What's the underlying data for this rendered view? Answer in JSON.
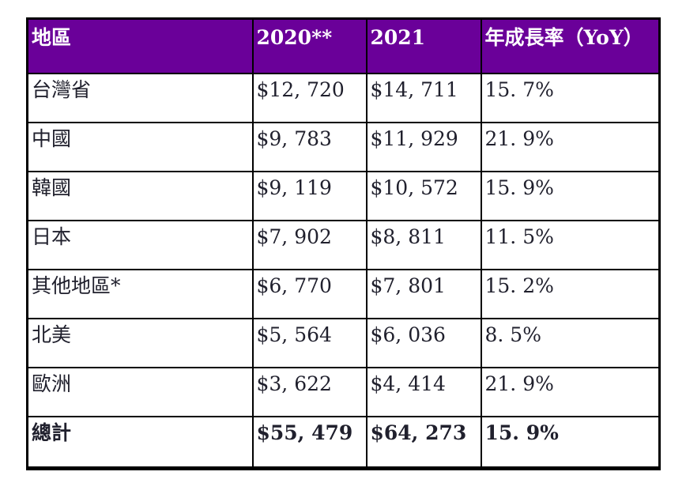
{
  "table": {
    "columns": [
      "地區",
      "2020**",
      "2021",
      "年成長率（YoY）"
    ],
    "rows": [
      {
        "region": "台灣省",
        "v2020": "$12, 720",
        "v2021": "$14, 711",
        "yoy": "15. 7%"
      },
      {
        "region": "中國",
        "v2020": "$9, 783",
        "v2021": "$11, 929",
        "yoy": "21. 9%"
      },
      {
        "region": "韓國",
        "v2020": "$9, 119",
        "v2021": "$10, 572",
        "yoy": "15. 9%"
      },
      {
        "region": "日本",
        "v2020": "$7, 902",
        "v2021": "$8, 811",
        "yoy": "11. 5%"
      },
      {
        "region": "其他地區*",
        "v2020": "$6, 770",
        "v2021": "$7, 801",
        "yoy": "15. 2%"
      },
      {
        "region": "北美",
        "v2020": "$5, 564",
        "v2021": "$6, 036",
        "yoy": "8. 5%"
      },
      {
        "region": "歐洲",
        "v2020": "$3, 622",
        "v2021": "$4, 414",
        "yoy": "21. 9%"
      },
      {
        "region": "總計",
        "v2020": "$55, 479",
        "v2021": "$64, 273",
        "yoy": "15. 9%"
      }
    ],
    "colors": {
      "header_bg": "#6a0099",
      "header_text": "#ffffff",
      "grid_border": "#000000",
      "cell_text": "#20202d",
      "page_bg": "#ffffff"
    }
  }
}
